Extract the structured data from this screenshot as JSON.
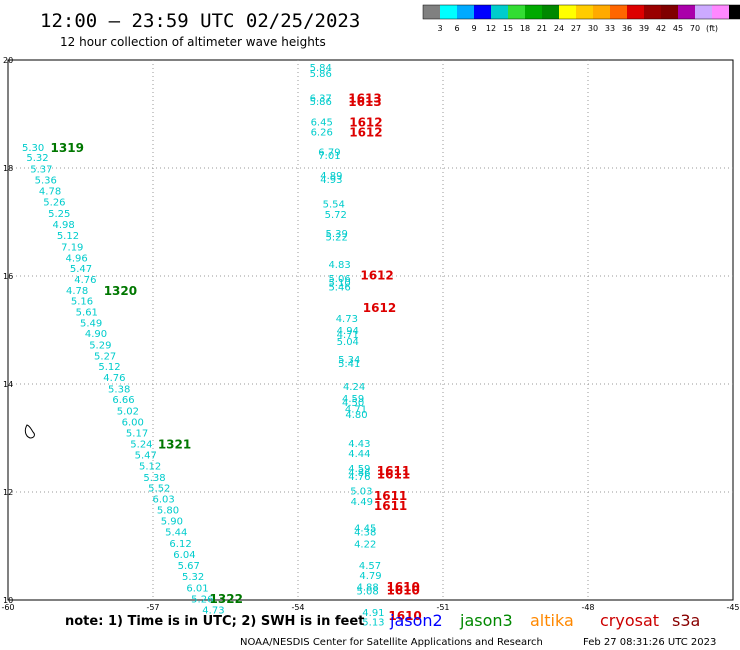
{
  "header": {
    "title": "12:00 – 23:59 UTC 02/25/2023",
    "subtitle": "12 hour collection of altimeter wave heights"
  },
  "legend": {
    "colors": [
      "#808080",
      "#00ffff",
      "#00aaff",
      "#0000ff",
      "#00cccc",
      "#33dd33",
      "#00aa00",
      "#008800",
      "#ffff00",
      "#ffcc00",
      "#ffaa00",
      "#ff6600",
      "#dd0000",
      "#990000",
      "#800000",
      "#aa00aa",
      "#ccaaff",
      "#ff88ff",
      "#000000"
    ],
    "labels": [
      "3",
      "6",
      "9",
      "12",
      "15",
      "18",
      "21",
      "24",
      "27",
      "30",
      "33",
      "36",
      "39",
      "42",
      "45",
      "70",
      "(ft)"
    ]
  },
  "footer": {
    "note": "note:  1) Time is in UTC; 2) SWH is in feet",
    "credit": "NOAA/NESDIS Center for Satellite Applications and Research",
    "timestamp": "Feb 27 08:31:26 UTC 2023"
  },
  "satellites": [
    {
      "name": "jason2",
      "color": "#0000ff"
    },
    {
      "name": "jason3",
      "color": "#008800"
    },
    {
      "name": "altika",
      "color": "#ff8800"
    },
    {
      "name": "cryosat",
      "color": "#cc0000"
    },
    {
      "name": "s3a",
      "color": "#880000"
    }
  ],
  "chart_data": {
    "type": "scatter",
    "title": "12:00 – 23:59 UTC 02/25/2023",
    "subtitle": "12 hour collection of altimeter wave heights",
    "xlim": [
      -60,
      -45
    ],
    "ylim": [
      10,
      20
    ],
    "xticks": [
      "-60",
      "-57",
      "-54",
      "-51",
      "-48",
      "-45"
    ],
    "yticks": [
      "10",
      "12",
      "14",
      "16",
      "18",
      "20"
    ],
    "grid": true,
    "colors": {
      "swh": "#00cccc",
      "time_green": "#007700",
      "time_red": "#dd0000",
      "grid": "#999999"
    },
    "swh_points": [
      {
        "lon": -59.71,
        "lat": 18.39,
        "v": "5.30"
      },
      {
        "lon": -59.62,
        "lat": 18.2,
        "v": "5.32"
      },
      {
        "lon": -59.54,
        "lat": 17.99,
        "v": "5.37"
      },
      {
        "lon": -59.45,
        "lat": 17.79,
        "v": "5.36"
      },
      {
        "lon": -59.36,
        "lat": 17.58,
        "v": "4.78"
      },
      {
        "lon": -59.27,
        "lat": 17.38,
        "v": "5.26"
      },
      {
        "lon": -59.17,
        "lat": 17.17,
        "v": "5.25"
      },
      {
        "lon": -59.08,
        "lat": 16.96,
        "v": "4.98"
      },
      {
        "lon": -58.99,
        "lat": 16.76,
        "v": "5.12"
      },
      {
        "lon": -58.9,
        "lat": 16.55,
        "v": "7.19"
      },
      {
        "lon": -58.81,
        "lat": 16.34,
        "v": "4.96"
      },
      {
        "lon": -58.72,
        "lat": 16.15,
        "v": "5.47"
      },
      {
        "lon": -58.63,
        "lat": 15.94,
        "v": "4.76"
      },
      {
        "lon": -58.8,
        "lat": 15.74,
        "v": "4.78"
      },
      {
        "lon": -58.7,
        "lat": 15.55,
        "v": "5.16"
      },
      {
        "lon": -58.6,
        "lat": 15.34,
        "v": "5.61"
      },
      {
        "lon": -58.51,
        "lat": 15.14,
        "v": "5.49"
      },
      {
        "lon": -58.41,
        "lat": 14.94,
        "v": "4.90"
      },
      {
        "lon": -58.32,
        "lat": 14.73,
        "v": "5.29"
      },
      {
        "lon": -58.22,
        "lat": 14.53,
        "v": "5.27"
      },
      {
        "lon": -58.13,
        "lat": 14.33,
        "v": "5.12"
      },
      {
        "lon": -58.03,
        "lat": 14.13,
        "v": "4.76"
      },
      {
        "lon": -57.93,
        "lat": 13.92,
        "v": "5.38"
      },
      {
        "lon": -57.84,
        "lat": 13.72,
        "v": "6.66"
      },
      {
        "lon": -57.75,
        "lat": 13.51,
        "v": "5.02"
      },
      {
        "lon": -57.65,
        "lat": 13.31,
        "v": "6.00"
      },
      {
        "lon": -57.56,
        "lat": 13.1,
        "v": "5.17"
      },
      {
        "lon": -57.47,
        "lat": 12.9,
        "v": "5.24"
      },
      {
        "lon": -57.38,
        "lat": 12.69,
        "v": "5.47"
      },
      {
        "lon": -57.29,
        "lat": 12.49,
        "v": "5.12"
      },
      {
        "lon": -57.2,
        "lat": 12.28,
        "v": "5.38"
      },
      {
        "lon": -57.1,
        "lat": 12.08,
        "v": "5.52"
      },
      {
        "lon": -57.01,
        "lat": 11.88,
        "v": "6.03"
      },
      {
        "lon": -56.92,
        "lat": 11.68,
        "v": "5.80"
      },
      {
        "lon": -56.84,
        "lat": 11.47,
        "v": "5.90"
      },
      {
        "lon": -56.75,
        "lat": 11.27,
        "v": "5.44"
      },
      {
        "lon": -56.66,
        "lat": 11.06,
        "v": "6.12"
      },
      {
        "lon": -56.58,
        "lat": 10.85,
        "v": "6.04"
      },
      {
        "lon": -56.49,
        "lat": 10.65,
        "v": "5.67"
      },
      {
        "lon": -56.4,
        "lat": 10.44,
        "v": "5.32"
      },
      {
        "lon": -56.31,
        "lat": 10.23,
        "v": "6.01"
      },
      {
        "lon": -56.21,
        "lat": 10.03,
        "v": "5.26"
      },
      {
        "lon": -55.98,
        "lat": 9.82,
        "v": "4.73"
      },
      {
        "lon": -53.76,
        "lat": 19.87,
        "v": "5.84"
      },
      {
        "lon": -53.76,
        "lat": 19.76,
        "v": "5.86"
      },
      {
        "lon": -53.76,
        "lat": 19.31,
        "v": "6.37"
      },
      {
        "lon": -53.76,
        "lat": 19.24,
        "v": "5.86"
      },
      {
        "lon": -53.74,
        "lat": 18.86,
        "v": "6.45"
      },
      {
        "lon": -53.74,
        "lat": 18.68,
        "v": "6.26"
      },
      {
        "lon": -53.58,
        "lat": 18.31,
        "v": "6.79"
      },
      {
        "lon": -53.58,
        "lat": 18.24,
        "v": "7.01"
      },
      {
        "lon": -53.54,
        "lat": 17.87,
        "v": "4.89"
      },
      {
        "lon": -53.54,
        "lat": 17.8,
        "v": "4.93"
      },
      {
        "lon": -53.49,
        "lat": 17.34,
        "v": "5.54"
      },
      {
        "lon": -53.45,
        "lat": 17.15,
        "v": "5.72"
      },
      {
        "lon": -53.43,
        "lat": 16.8,
        "v": "5.39"
      },
      {
        "lon": -53.43,
        "lat": 16.73,
        "v": "5.22"
      },
      {
        "lon": -53.37,
        "lat": 16.22,
        "v": "4.83"
      },
      {
        "lon": -53.37,
        "lat": 15.96,
        "v": "5.06"
      },
      {
        "lon": -53.37,
        "lat": 15.89,
        "v": "5.10"
      },
      {
        "lon": -53.37,
        "lat": 15.81,
        "v": "5.46"
      },
      {
        "lon": -53.22,
        "lat": 15.22,
        "v": "4.73"
      },
      {
        "lon": -53.2,
        "lat": 15.0,
        "v": "4.94"
      },
      {
        "lon": -53.2,
        "lat": 14.93,
        "v": "4.71"
      },
      {
        "lon": -53.2,
        "lat": 14.8,
        "v": "5.04"
      },
      {
        "lon": -53.17,
        "lat": 14.46,
        "v": "5.34"
      },
      {
        "lon": -53.17,
        "lat": 14.39,
        "v": "5.41"
      },
      {
        "lon": -53.07,
        "lat": 13.96,
        "v": "4.24"
      },
      {
        "lon": -53.09,
        "lat": 13.74,
        "v": "4.59"
      },
      {
        "lon": -53.09,
        "lat": 13.67,
        "v": "4.50"
      },
      {
        "lon": -53.03,
        "lat": 13.55,
        "v": "4.71"
      },
      {
        "lon": -53.02,
        "lat": 13.44,
        "v": "4.80"
      },
      {
        "lon": -52.96,
        "lat": 12.91,
        "v": "4.43"
      },
      {
        "lon": -52.96,
        "lat": 12.72,
        "v": "4.44"
      },
      {
        "lon": -52.96,
        "lat": 12.44,
        "v": "4.59"
      },
      {
        "lon": -52.96,
        "lat": 12.37,
        "v": "4.86"
      },
      {
        "lon": -52.96,
        "lat": 12.3,
        "v": "4.76"
      },
      {
        "lon": -52.92,
        "lat": 12.03,
        "v": "5.03"
      },
      {
        "lon": -52.91,
        "lat": 11.83,
        "v": "4.49"
      },
      {
        "lon": -52.84,
        "lat": 11.34,
        "v": "4.45"
      },
      {
        "lon": -52.84,
        "lat": 11.27,
        "v": "4.38"
      },
      {
        "lon": -52.84,
        "lat": 11.05,
        "v": "4.22"
      },
      {
        "lon": -52.74,
        "lat": 10.65,
        "v": "4.57"
      },
      {
        "lon": -52.73,
        "lat": 10.46,
        "v": "4.79"
      },
      {
        "lon": -52.79,
        "lat": 10.25,
        "v": "4.88"
      },
      {
        "lon": -52.79,
        "lat": 10.18,
        "v": "5.08"
      },
      {
        "lon": -52.67,
        "lat": 9.78,
        "v": "4.91"
      },
      {
        "lon": -52.67,
        "lat": 9.6,
        "v": "5.13"
      }
    ],
    "time_labels": [
      {
        "lon": -59.12,
        "lat": 18.39,
        "v": "1319",
        "color": "green"
      },
      {
        "lon": -58.02,
        "lat": 15.74,
        "v": "1320",
        "color": "green"
      },
      {
        "lon": -56.9,
        "lat": 12.9,
        "v": "1321",
        "color": "green"
      },
      {
        "lon": -55.83,
        "lat": 10.04,
        "v": "1322",
        "color": "green"
      },
      {
        "lon": -52.96,
        "lat": 19.31,
        "v": "1613",
        "color": "red"
      },
      {
        "lon": -52.96,
        "lat": 19.24,
        "v": "1613",
        "color": "red"
      },
      {
        "lon": -52.94,
        "lat": 18.86,
        "v": "1612",
        "color": "red"
      },
      {
        "lon": -52.94,
        "lat": 18.68,
        "v": "1612",
        "color": "red"
      },
      {
        "lon": -52.71,
        "lat": 16.03,
        "v": "1612",
        "color": "red"
      },
      {
        "lon": -52.66,
        "lat": 15.43,
        "v": "1612",
        "color": "red"
      },
      {
        "lon": -52.37,
        "lat": 12.41,
        "v": "1611",
        "color": "red"
      },
      {
        "lon": -52.37,
        "lat": 12.34,
        "v": "1611",
        "color": "red"
      },
      {
        "lon": -52.43,
        "lat": 11.94,
        "v": "1611",
        "color": "red"
      },
      {
        "lon": -52.43,
        "lat": 11.76,
        "v": "1611",
        "color": "red"
      },
      {
        "lon": -52.17,
        "lat": 10.26,
        "v": "1610",
        "color": "red"
      },
      {
        "lon": -52.17,
        "lat": 10.19,
        "v": "1610",
        "color": "red"
      },
      {
        "lon": -52.13,
        "lat": 9.72,
        "v": "1610",
        "color": "red"
      }
    ]
  }
}
